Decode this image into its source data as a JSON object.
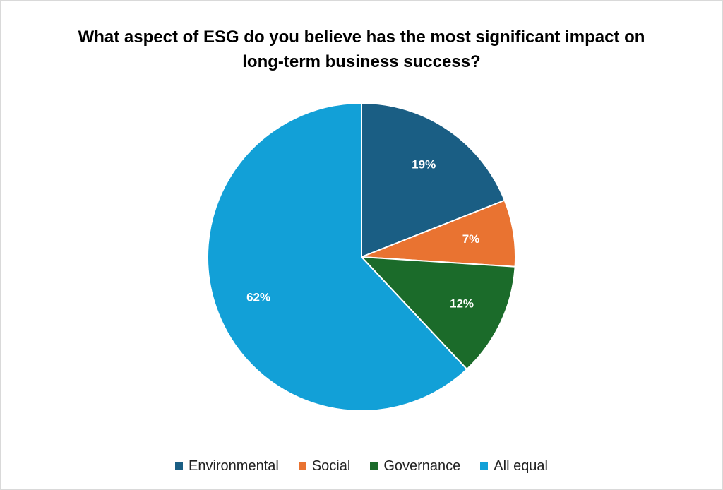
{
  "chart_data": {
    "type": "pie",
    "title_lines": [
      "What aspect of ESG do you believe has the most significant impact on",
      "long-term business success?"
    ],
    "categories": [
      "Environmental",
      "Social",
      "Governance",
      "All equal"
    ],
    "values": [
      19,
      7,
      12,
      62
    ],
    "labels": [
      "19%",
      "7%",
      "12%",
      "62%"
    ],
    "colors": [
      "#1a5e84",
      "#e97331",
      "#1b6b2a",
      "#12a0d7"
    ],
    "legend_position": "bottom"
  }
}
